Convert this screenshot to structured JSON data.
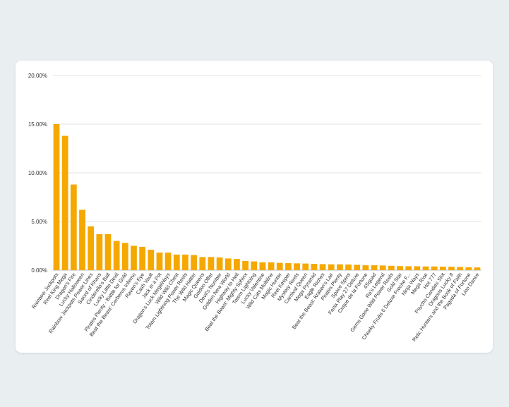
{
  "chart_data": {
    "type": "bar",
    "title": "",
    "xlabel": "",
    "ylabel": "",
    "ylim": [
      0,
      20
    ],
    "y_ticks": [
      "0.00%",
      "5.00%",
      "10.00%",
      "15.00%",
      "20.00%"
    ],
    "y_tick_values": [
      0,
      5,
      10,
      15,
      20
    ],
    "grid": true,
    "bar_color": "#f5a800",
    "categories": [
      "Rainbow Jackpots",
      "Reel King Mega",
      "Dragon's Fire",
      "Lucky Halloween",
      "Rainbow Jackpots Power Lines",
      "Sword of Khans",
      "Cinderella's Ball",
      "Lucky Little Devil",
      "Pirates Plenty - Battle for Gold",
      "Beat the Beast: Cerberus Inferno",
      "Raven's Eye",
      "Cash Vault",
      "Jack in a Pot",
      "Dragon's Luck MegaWays",
      "Wild Wild Chest",
      "Totem Lightning Power Reels",
      "The Wild Hatter",
      "Magic Queens",
      "Golden Offer",
      "Devil's Number",
      "Golden New World",
      "Highway to Hell",
      "Beat the Beast: Mighty Sphinx",
      "Totem Lightning",
      "Lucky Valentine",
      "Wild Cats Multiline",
      "Magic Hunter",
      "Reel Keeper",
      "Mystery Reels",
      "Carnival Queen",
      "Mega Pyramid",
      "Eagle Riches",
      "Beat the Beast: Kraken's Lair",
      "Pirates Plenty",
      "Space Spins",
      "Fenix Play 27 Deluxe",
      "Cirque de la Fortune",
      "4Squad",
      "Ra's Legend",
      "Gems Gone Wild Power Reels",
      "Gold Star",
      "Cheeky Fruits 6 Deluxe Freche F...",
      "Ninja Ways",
      "Mega Rise",
      "Hot 777",
      "Psycho Candies Slot",
      "Dragons Lucky 8",
      "Relic Hunters and the Book of Faith",
      "Pagoda of Fortune",
      "Lion Dance"
    ],
    "values": [
      15.0,
      13.8,
      8.8,
      6.2,
      4.5,
      3.7,
      3.7,
      3.0,
      2.8,
      2.5,
      2.4,
      2.1,
      1.8,
      1.8,
      1.6,
      1.6,
      1.55,
      1.35,
      1.35,
      1.3,
      1.2,
      1.15,
      0.95,
      0.9,
      0.8,
      0.8,
      0.75,
      0.72,
      0.7,
      0.68,
      0.65,
      0.62,
      0.6,
      0.6,
      0.58,
      0.55,
      0.5,
      0.5,
      0.48,
      0.45,
      0.42,
      0.4,
      0.4,
      0.38,
      0.38,
      0.36,
      0.35,
      0.33,
      0.3,
      0.28
    ]
  }
}
